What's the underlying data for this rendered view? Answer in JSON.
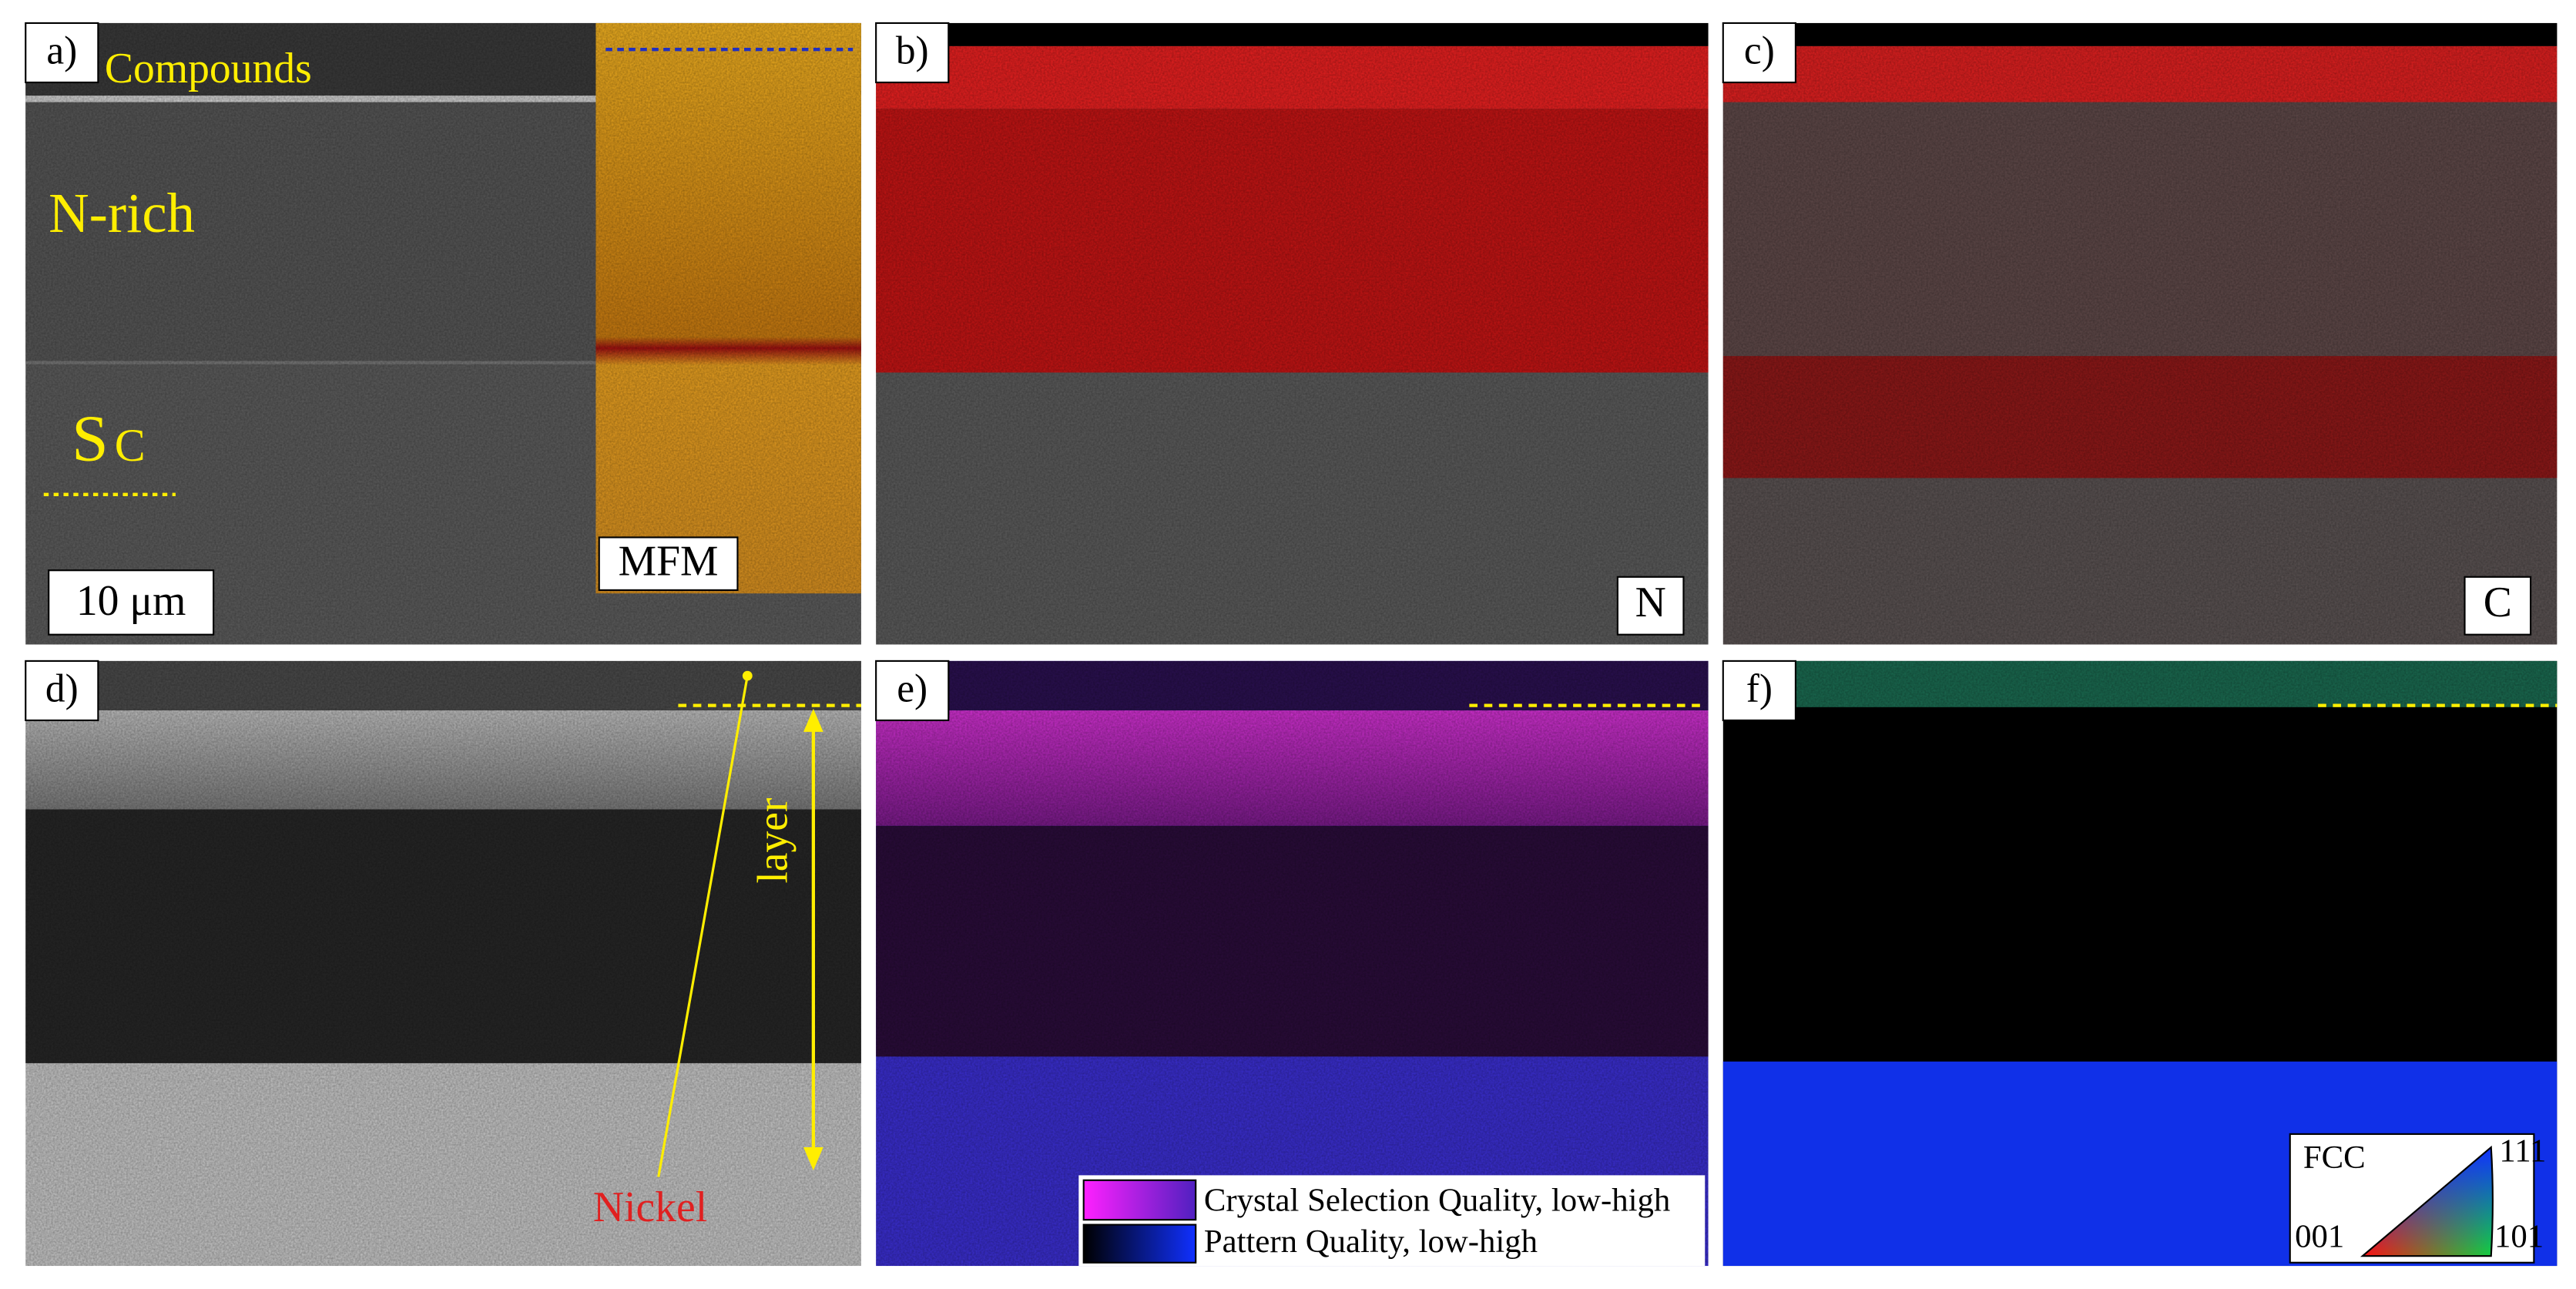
{
  "panel_a": {
    "label": "a)",
    "compounds": "Compounds",
    "n_rich": "N-rich",
    "sc": {
      "main": "S",
      "small": "C"
    },
    "scale_bar": "10 μm",
    "inset": "MFM"
  },
  "panel_b": {
    "label": "b)",
    "element": "N"
  },
  "panel_c": {
    "label": "c)",
    "element": "C"
  },
  "panel_d": {
    "label": "d)",
    "layer": "layer",
    "nickel": "Nickel"
  },
  "panel_e": {
    "label": "e)",
    "legend": [
      "Crystal Selection Quality, low-high",
      "Pattern Quality, low-high"
    ]
  },
  "panel_f": {
    "label": "f)",
    "phase": "FCC",
    "poles": [
      "111",
      "001",
      "101"
    ]
  }
}
